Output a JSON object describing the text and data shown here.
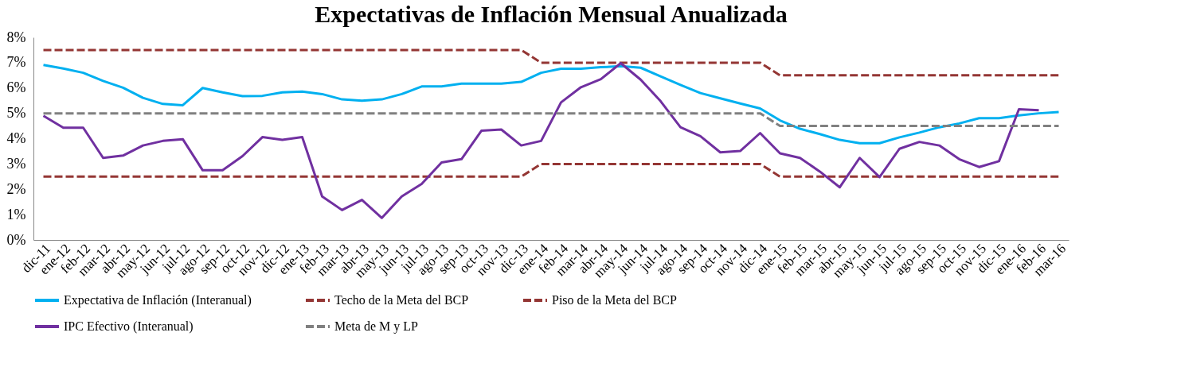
{
  "chart_data": {
    "type": "line",
    "title": "Expectativas de Inflación Mensual Anualizada",
    "categories": [
      "dic-11",
      "ene-12",
      "feb-12",
      "mar-12",
      "abr-12",
      "may-12",
      "jun-12",
      "jul-12",
      "ago-12",
      "sep-12",
      "oct-12",
      "nov-12",
      "dic-12",
      "ene-13",
      "feb-13",
      "mar-13",
      "abr-13",
      "may-13",
      "jun-13",
      "jul-13",
      "ago-13",
      "sep-13",
      "oct-13",
      "nov-13",
      "dic-13",
      "ene-14",
      "feb-14",
      "mar-14",
      "abr-14",
      "may-14",
      "jun-14",
      "jul-14",
      "ago-14",
      "sep-14",
      "oct-14",
      "nov-14",
      "dic-14",
      "ene-15",
      "feb-15",
      "mar-15",
      "abr-15",
      "may-15",
      "jun-15",
      "jul-15",
      "ago-15",
      "sep-15",
      "oct-15",
      "nov-15",
      "dic-15",
      "ene-16",
      "feb-16",
      "mar-16"
    ],
    "series": [
      {
        "name": "Expectativa de Inflación (Interanual)",
        "color": "#00b0f0",
        "line_style": "solid",
        "values": [
          6.91,
          6.77,
          6.6,
          6.28,
          6.01,
          5.61,
          5.37,
          5.32,
          6.0,
          5.83,
          5.68,
          5.69,
          5.83,
          5.86,
          5.76,
          5.55,
          5.5,
          5.55,
          5.76,
          6.06,
          6.06,
          6.17,
          6.17,
          6.17,
          6.24,
          6.6,
          6.76,
          6.76,
          6.82,
          6.86,
          6.8,
          6.46,
          6.12,
          5.8,
          5.59,
          5.39,
          5.19,
          4.72,
          4.39,
          4.18,
          3.95,
          3.82,
          3.82,
          4.05,
          4.24,
          4.45,
          4.6,
          4.81,
          4.81,
          4.92,
          5.0,
          5.05
        ]
      },
      {
        "name": "Techo de la Meta del BCP",
        "color": "#943634",
        "line_style": "dashed",
        "values": [
          7.5,
          7.5,
          7.5,
          7.5,
          7.5,
          7.5,
          7.5,
          7.5,
          7.5,
          7.5,
          7.5,
          7.5,
          7.5,
          7.5,
          7.5,
          7.5,
          7.5,
          7.5,
          7.5,
          7.5,
          7.5,
          7.5,
          7.5,
          7.5,
          7.5,
          7,
          7,
          7,
          7,
          7,
          7,
          7,
          7,
          7,
          7,
          7,
          7,
          6.5,
          6.5,
          6.5,
          6.5,
          6.5,
          6.5,
          6.5,
          6.5,
          6.5,
          6.5,
          6.5,
          6.5,
          6.5,
          6.5,
          6.5
        ]
      },
      {
        "name": "Piso de la Meta del BCP",
        "color": "#943634",
        "line_style": "dashed",
        "values": [
          2.5,
          2.5,
          2.5,
          2.5,
          2.5,
          2.5,
          2.5,
          2.5,
          2.5,
          2.5,
          2.5,
          2.5,
          2.5,
          2.5,
          2.5,
          2.5,
          2.5,
          2.5,
          2.5,
          2.5,
          2.5,
          2.5,
          2.5,
          2.5,
          2.5,
          3,
          3,
          3,
          3,
          3,
          3,
          3,
          3,
          3,
          3,
          3,
          3,
          2.5,
          2.5,
          2.5,
          2.5,
          2.5,
          2.5,
          2.5,
          2.5,
          2.5,
          2.5,
          2.5,
          2.5,
          2.5,
          2.5,
          2.5
        ]
      },
      {
        "name": "IPC Efectivo (Interanual)",
        "color": "#7030a0",
        "line_style": "solid",
        "values": [
          4.9,
          4.43,
          4.43,
          3.24,
          3.33,
          3.73,
          3.91,
          3.98,
          2.75,
          2.75,
          3.31,
          4.06,
          3.95,
          4.06,
          1.72,
          1.18,
          1.58,
          0.87,
          1.72,
          2.21,
          3.06,
          3.19,
          4.31,
          4.36,
          3.73,
          3.91,
          5.43,
          6.03,
          6.35,
          6.98,
          6.33,
          5.48,
          4.45,
          4.1,
          3.46,
          3.51,
          4.22,
          3.42,
          3.24,
          2.7,
          2.08,
          3.24,
          2.48,
          3.6,
          3.87,
          3.73,
          3.19,
          2.88,
          3.11,
          5.16,
          5.12,
          null
        ]
      },
      {
        "name": "Meta de M y LP",
        "color": "#808080",
        "line_style": "dashed",
        "values": [
          5,
          5,
          5,
          5,
          5,
          5,
          5,
          5,
          5,
          5,
          5,
          5,
          5,
          5,
          5,
          5,
          5,
          5,
          5,
          5,
          5,
          5,
          5,
          5,
          5,
          5,
          5,
          5,
          5,
          5,
          5,
          5,
          5,
          5,
          5,
          5,
          5,
          4.5,
          4.5,
          4.5,
          4.5,
          4.5,
          4.5,
          4.5,
          4.5,
          4.5,
          4.5,
          4.5,
          4.5,
          4.5,
          4.5,
          4.5
        ]
      }
    ],
    "ylim": [
      0,
      8
    ],
    "yticks": [
      {
        "value": 0,
        "label": "0%"
      },
      {
        "value": 1,
        "label": "1%"
      },
      {
        "value": 2,
        "label": "2%"
      },
      {
        "value": 3,
        "label": "3%"
      },
      {
        "value": 4,
        "label": "4%"
      },
      {
        "value": 5,
        "label": "5%"
      },
      {
        "value": 6,
        "label": "6%"
      },
      {
        "value": 7,
        "label": "7%"
      },
      {
        "value": 8,
        "label": "8%"
      }
    ],
    "grid": false,
    "legend": "bottom",
    "marker": "none"
  }
}
